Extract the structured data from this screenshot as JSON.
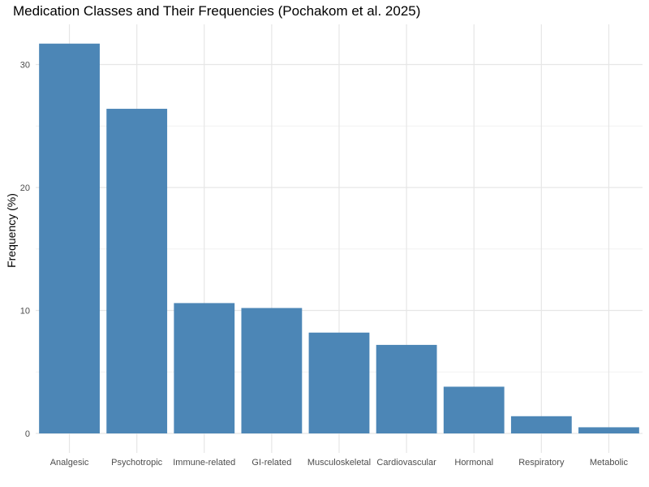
{
  "chart_data": {
    "type": "bar",
    "title": "Medication Classes and Their Frequencies (Pochakom et al. 2025)",
    "xlabel": "",
    "ylabel": "Frequency (%)",
    "categories": [
      "Analgesic",
      "Psychotropic",
      "Immune-related",
      "GI-related",
      "Musculoskeletal",
      "Cardiovascular",
      "Hormonal",
      "Respiratory",
      "Metabolic"
    ],
    "values": [
      31.7,
      26.4,
      10.6,
      10.2,
      8.2,
      7.2,
      3.8,
      1.4,
      0.5
    ],
    "ylim": [
      0,
      33.3
    ],
    "yticks": [
      0,
      10,
      20,
      30
    ],
    "grid": true,
    "legend": "none",
    "bar_color": "#4682B4"
  }
}
